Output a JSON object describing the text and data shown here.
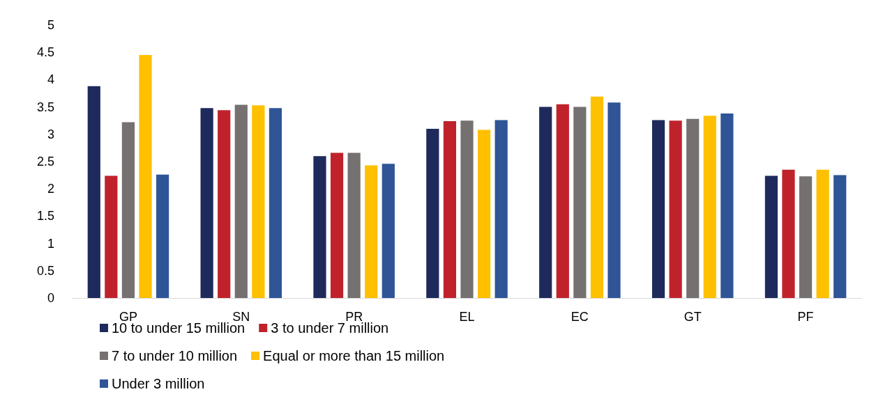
{
  "chart_data": {
    "type": "bar",
    "categories": [
      "GP",
      "SN",
      "PR",
      "EL",
      "EC",
      "GT",
      "PF"
    ],
    "series": [
      {
        "name": "10 to under 15 million",
        "color": "#1f2a5c",
        "values": [
          3.88,
          3.48,
          2.6,
          3.1,
          3.5,
          3.26,
          2.24
        ]
      },
      {
        "name": "3 to under 7 million",
        "color": "#c0222b",
        "values": [
          2.24,
          3.44,
          2.66,
          3.24,
          3.55,
          3.25,
          2.35
        ]
      },
      {
        "name": "7 to under 10 million",
        "color": "#767171",
        "values": [
          3.22,
          3.54,
          2.66,
          3.25,
          3.5,
          3.28,
          2.23
        ]
      },
      {
        "name": "Equal or more than 15 million",
        "color": "#ffc000",
        "values": [
          4.45,
          3.53,
          2.43,
          3.08,
          3.69,
          3.34,
          2.35
        ]
      },
      {
        "name": "Under 3 million",
        "color": "#2f5597",
        "values": [
          2.26,
          3.48,
          2.46,
          3.26,
          3.58,
          3.38,
          2.25
        ]
      }
    ],
    "ylim": [
      0,
      5
    ],
    "yticks": [
      0,
      0.5,
      1,
      1.5,
      2,
      2.5,
      3,
      3.5,
      4,
      4.5,
      5
    ],
    "grid": false,
    "legend": "bottom"
  }
}
